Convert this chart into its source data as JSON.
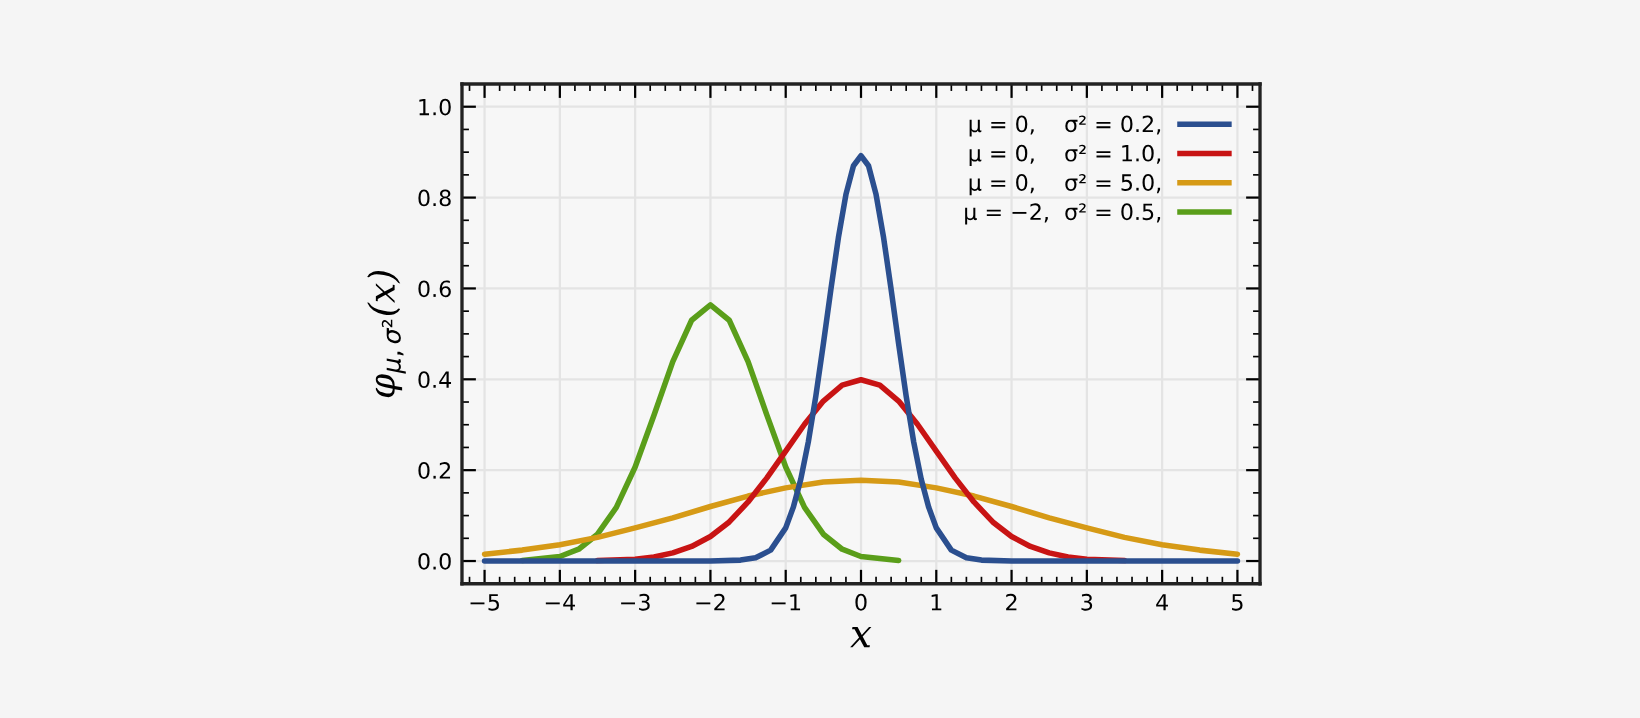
{
  "chart_data": {
    "type": "line",
    "xlabel": "x",
    "ylabel": "φ$_{μ,σ²}$(x)",
    "xlim": [
      -5.3,
      5.3
    ],
    "ylim": [
      -0.05,
      1.05
    ],
    "xticks": [
      {
        "value": -5,
        "label": "−5"
      },
      {
        "value": -4,
        "label": "−4"
      },
      {
        "value": -3,
        "label": "−3"
      },
      {
        "value": -2,
        "label": "−2"
      },
      {
        "value": -1,
        "label": "−1"
      },
      0,
      1,
      2,
      3,
      4,
      5
    ],
    "yticks": [
      {
        "value": 0,
        "label": "0.0"
      },
      0.2,
      0.4,
      0.6,
      0.8,
      {
        "value": 1,
        "label": "1.0"
      }
    ],
    "grid": true,
    "legend": "top right",
    "series": [
      {
        "name": "μ = 0,    σ² = 0.2,",
        "color": "#2b4f8f",
        "x": [
          -5,
          -4,
          -3,
          -2,
          -1.6,
          -1.4,
          -1.2,
          -1,
          -0.9,
          -0.8,
          -0.7,
          -0.6,
          -0.5,
          -0.4,
          -0.3,
          -0.2,
          -0.1,
          0,
          0.1,
          0.2,
          0.3,
          0.4,
          0.5,
          0.6,
          0.7,
          0.8,
          0.9,
          1,
          1.2,
          1.4,
          1.6,
          2,
          3,
          4,
          5
        ],
        "values": [
          0,
          0,
          0,
          0,
          0.002,
          0.007,
          0.024,
          0.073,
          0.118,
          0.18,
          0.262,
          0.363,
          0.478,
          0.598,
          0.712,
          0.807,
          0.87,
          0.892,
          0.87,
          0.807,
          0.712,
          0.598,
          0.478,
          0.363,
          0.262,
          0.18,
          0.118,
          0.073,
          0.024,
          0.007,
          0.002,
          0,
          0,
          0,
          0
        ]
      },
      {
        "name": "μ = 0,    σ² = 1.0,",
        "color": "#c81414",
        "x": [
          -3.5,
          -3,
          -2.75,
          -2.5,
          -2.25,
          -2,
          -1.75,
          -1.5,
          -1.25,
          -1,
          -0.75,
          -0.5,
          -0.25,
          0,
          0.25,
          0.5,
          0.75,
          1,
          1.25,
          1.5,
          1.75,
          2,
          2.25,
          2.5,
          2.75,
          3,
          3.5
        ],
        "values": [
          0.001,
          0.004,
          0.009,
          0.018,
          0.032,
          0.054,
          0.086,
          0.13,
          0.183,
          0.242,
          0.301,
          0.352,
          0.387,
          0.399,
          0.387,
          0.352,
          0.301,
          0.242,
          0.183,
          0.13,
          0.086,
          0.054,
          0.032,
          0.018,
          0.009,
          0.004,
          0.001
        ]
      },
      {
        "name": "μ = 0,    σ² = 5.0,",
        "color": "#d69a16",
        "x": [
          -5,
          -4.5,
          -4,
          -3.5,
          -3,
          -2.5,
          -2,
          -1.5,
          -1,
          -0.5,
          0,
          0.5,
          1,
          1.5,
          2,
          2.5,
          3,
          3.5,
          4,
          4.5,
          5
        ],
        "values": [
          0.015,
          0.024,
          0.036,
          0.052,
          0.073,
          0.095,
          0.12,
          0.143,
          0.161,
          0.174,
          0.178,
          0.174,
          0.161,
          0.143,
          0.12,
          0.095,
          0.073,
          0.052,
          0.036,
          0.024,
          0.015
        ]
      },
      {
        "name": "μ = −2,  σ² = 0.5,",
        "color": "#5a9e1a",
        "x": [
          -4.5,
          -4,
          -3.75,
          -3.5,
          -3.25,
          -3,
          -2.75,
          -2.5,
          -2.25,
          -2,
          -1.75,
          -1.5,
          -1.25,
          -1,
          -0.75,
          -0.5,
          -0.25,
          0,
          0.5
        ],
        "values": [
          0.001,
          0.01,
          0.026,
          0.059,
          0.118,
          0.207,
          0.321,
          0.439,
          0.53,
          0.564,
          0.53,
          0.439,
          0.321,
          0.207,
          0.118,
          0.059,
          0.026,
          0.01,
          0.001
        ]
      }
    ]
  }
}
